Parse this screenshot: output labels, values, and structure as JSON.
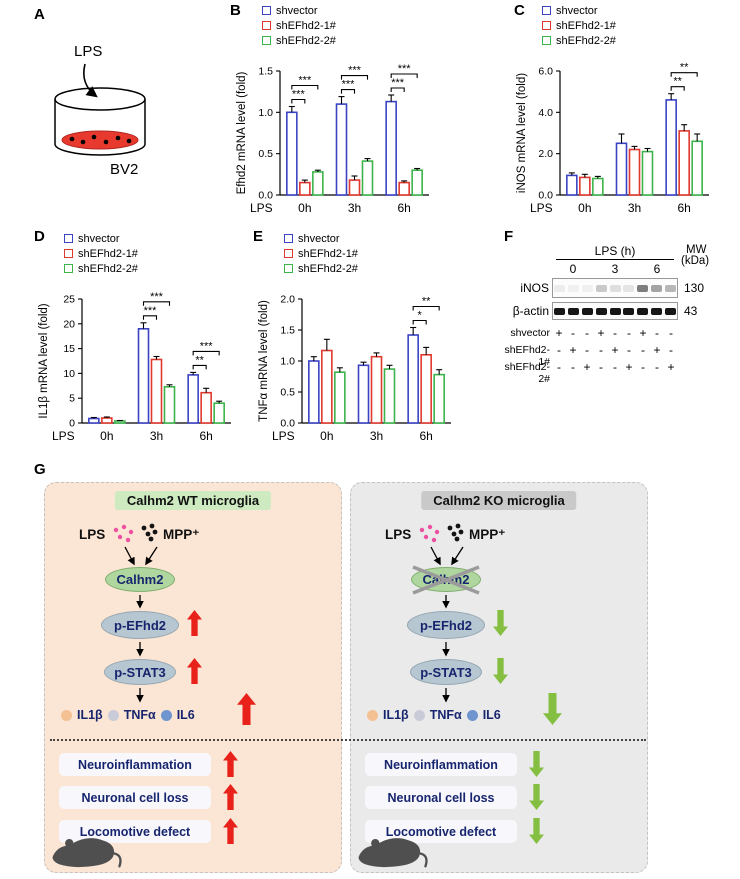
{
  "panels": {
    "a": {
      "label": "A",
      "stimulus": "LPS",
      "cell_line": "BV2"
    },
    "b": {
      "label": "B"
    },
    "c": {
      "label": "C"
    },
    "d": {
      "label": "D"
    },
    "e": {
      "label": "E"
    },
    "f": {
      "label": "F"
    },
    "g": {
      "label": "G"
    }
  },
  "chart_data": [
    {
      "type": "bar",
      "panel": "B",
      "ylabel": "Efhd2 mRNA level (fold)",
      "x_prefix": "LPS",
      "categories": [
        "0h",
        "3h",
        "6h"
      ],
      "ylim": [
        0,
        1.5
      ],
      "yticks": [
        0,
        0.5,
        1.0,
        1.5
      ],
      "ytick_labels": [
        "0.0",
        "0.5",
        "1.0",
        "1.5"
      ],
      "grid": false,
      "legend_position": "top-left",
      "series": [
        {
          "name": "shvector",
          "color": "#3a43c4",
          "values": [
            1.0,
            1.1,
            1.13
          ],
          "errors": [
            0.07,
            0.09,
            0.08
          ]
        },
        {
          "name": "shEFhd2-1#",
          "color": "#e0392e",
          "values": [
            0.15,
            0.18,
            0.15
          ],
          "errors": [
            0.03,
            0.05,
            0.02
          ]
        },
        {
          "name": "shEFhd2-2#",
          "color": "#3cb44b",
          "values": [
            0.28,
            0.41,
            0.3
          ],
          "errors": [
            0.02,
            0.03,
            0.02
          ]
        }
      ],
      "significance": [
        {
          "category": 0,
          "from": 0,
          "to": 1,
          "label": "***",
          "level": 0
        },
        {
          "category": 0,
          "from": 0,
          "to": 2,
          "label": "***",
          "level": 1
        },
        {
          "category": 1,
          "from": 0,
          "to": 1,
          "label": "***",
          "level": 0
        },
        {
          "category": 1,
          "from": 0,
          "to": 2,
          "label": "***",
          "level": 1
        },
        {
          "category": 2,
          "from": 0,
          "to": 1,
          "label": "***",
          "level": 0
        },
        {
          "category": 2,
          "from": 0,
          "to": 2,
          "label": "***",
          "level": 1
        }
      ]
    },
    {
      "type": "bar",
      "panel": "C",
      "ylabel": "iNOS mRNA level (fold)",
      "x_prefix": "LPS",
      "categories": [
        "0h",
        "3h",
        "6h"
      ],
      "ylim": [
        0,
        6
      ],
      "yticks": [
        0,
        2,
        4,
        6
      ],
      "ytick_labels": [
        "0.0",
        "2.0",
        "4.0",
        "6.0"
      ],
      "grid": false,
      "legend_position": "top-left",
      "series": [
        {
          "name": "shvector",
          "color": "#3a43c4",
          "values": [
            0.95,
            2.5,
            4.6
          ],
          "errors": [
            0.12,
            0.45,
            0.3
          ]
        },
        {
          "name": "shEFhd2-1#",
          "color": "#e0392e",
          "values": [
            0.85,
            2.2,
            3.1
          ],
          "errors": [
            0.15,
            0.15,
            0.3
          ]
        },
        {
          "name": "shEFhd2-2#",
          "color": "#3cb44b",
          "values": [
            0.8,
            2.1,
            2.6
          ],
          "errors": [
            0.1,
            0.15,
            0.35
          ]
        }
      ],
      "significance": [
        {
          "category": 2,
          "from": 0,
          "to": 1,
          "label": "**",
          "level": 0
        },
        {
          "category": 2,
          "from": 0,
          "to": 2,
          "label": "**",
          "level": 1
        }
      ]
    },
    {
      "type": "bar",
      "panel": "D",
      "ylabel": "IL1β mRNA level (fold)",
      "x_prefix": "LPS",
      "categories": [
        "0h",
        "3h",
        "6h"
      ],
      "ylim": [
        0,
        25
      ],
      "yticks": [
        0,
        5,
        10,
        15,
        20,
        25
      ],
      "ytick_labels": [
        "0",
        "5",
        "10",
        "15",
        "20",
        "25"
      ],
      "grid": false,
      "legend_position": "top-left",
      "series": [
        {
          "name": "shvector",
          "color": "#3a43c4",
          "values": [
            0.9,
            19.0,
            9.7
          ],
          "errors": [
            0.2,
            1.2,
            0.5
          ]
        },
        {
          "name": "shEFhd2-1#",
          "color": "#e0392e",
          "values": [
            1.0,
            12.8,
            6.1
          ],
          "errors": [
            0.2,
            0.6,
            0.9
          ]
        },
        {
          "name": "shEFhd2-2#",
          "color": "#3cb44b",
          "values": [
            0.4,
            7.3,
            4.0
          ],
          "errors": [
            0.1,
            0.4,
            0.4
          ]
        }
      ],
      "significance": [
        {
          "category": 1,
          "from": 0,
          "to": 1,
          "label": "***",
          "level": 0
        },
        {
          "category": 1,
          "from": 0,
          "to": 2,
          "label": "***",
          "level": 1
        },
        {
          "category": 2,
          "from": 0,
          "to": 1,
          "label": "**",
          "level": 0
        },
        {
          "category": 2,
          "from": 0,
          "to": 2,
          "label": "***",
          "level": 1
        }
      ]
    },
    {
      "type": "bar",
      "panel": "E",
      "ylabel": "TNFα mRNA level (fold)",
      "x_prefix": "LPS",
      "categories": [
        "0h",
        "3h",
        "6h"
      ],
      "ylim": [
        0,
        2
      ],
      "yticks": [
        0,
        0.5,
        1.0,
        1.5,
        2.0
      ],
      "ytick_labels": [
        "0.0",
        "0.5",
        "1.0",
        "1.5",
        "2.0"
      ],
      "grid": false,
      "legend_position": "top-left",
      "series": [
        {
          "name": "shvector",
          "color": "#3a43c4",
          "values": [
            1.0,
            0.93,
            1.42
          ],
          "errors": [
            0.07,
            0.05,
            0.12
          ]
        },
        {
          "name": "shEFhd2-1#",
          "color": "#e0392e",
          "values": [
            1.17,
            1.07,
            1.1
          ],
          "errors": [
            0.18,
            0.06,
            0.12
          ]
        },
        {
          "name": "shEFhd2-2#",
          "color": "#3cb44b",
          "values": [
            0.82,
            0.87,
            0.78
          ],
          "errors": [
            0.07,
            0.06,
            0.08
          ]
        }
      ],
      "significance": [
        {
          "category": 2,
          "from": 0,
          "to": 1,
          "label": "*",
          "level": 0
        },
        {
          "category": 2,
          "from": 0,
          "to": 2,
          "label": "**",
          "level": 1
        }
      ]
    }
  ],
  "blot": {
    "treatment_header": "LPS (h)",
    "mw_header_line1": "MW",
    "mw_header_line2": "(kDa)",
    "timepoints": [
      "0",
      "3",
      "6"
    ],
    "bands": [
      {
        "protein": "iNOS",
        "mw": "130",
        "intensities": [
          0.07,
          0.05,
          0.05,
          0.22,
          0.13,
          0.1,
          0.55,
          0.38,
          0.3
        ]
      },
      {
        "protein": "β-actin",
        "mw": "43",
        "intensities": [
          1,
          1,
          1,
          1,
          1,
          1,
          1,
          1,
          1
        ]
      }
    ],
    "condition_rows": [
      {
        "name": "shvector",
        "signs": [
          "+",
          "-",
          "-",
          "+",
          "-",
          "-",
          "+",
          "-",
          "-"
        ]
      },
      {
        "name": "shEFhd2-1#",
        "signs": [
          "-",
          "+",
          "-",
          "-",
          "+",
          "-",
          "-",
          "+",
          "-"
        ]
      },
      {
        "name": "shEFhd2-2#",
        "signs": [
          "-",
          "-",
          "+",
          "-",
          "-",
          "+",
          "-",
          "-",
          "+"
        ]
      }
    ]
  },
  "schematic": {
    "lps_dot_color": "#ee4fa0",
    "mpp_dot_color": "#141414",
    "columns": [
      {
        "title": "Calhm2 WT microglia",
        "title_bg": "#cdeac0",
        "panel_bg": "#fbe5d4",
        "stimuli": {
          "lps": "LPS",
          "mpp": "MPP⁺"
        },
        "nodes": {
          "receptor": "Calhm2",
          "kinase": "p-EFhd2",
          "tf": "p-STAT3"
        },
        "receptor_crossed": false,
        "cytokines": [
          {
            "name": "IL1β",
            "color": "#f3c193"
          },
          {
            "name": "TNFα",
            "color": "#c9cbd8"
          },
          {
            "name": "IL6",
            "color": "#6f95cf"
          }
        ],
        "outcomes": [
          "Neuroinflammation",
          "Neuronal cell loss",
          "Locomotive defect"
        ],
        "trend": "up",
        "trend_color": "#e8211b"
      },
      {
        "title": "Calhm2 KO microglia",
        "title_bg": "#c9c9c9",
        "panel_bg": "#eaeaea",
        "stimuli": {
          "lps": "LPS",
          "mpp": "MPP⁺"
        },
        "nodes": {
          "receptor": "Calhm2",
          "kinase": "p-EFhd2",
          "tf": "p-STAT3"
        },
        "receptor_crossed": true,
        "cytokines": [
          {
            "name": "IL1β",
            "color": "#f3c193"
          },
          {
            "name": "TNFα",
            "color": "#c9cbd8"
          },
          {
            "name": "IL6",
            "color": "#6f95cf"
          }
        ],
        "outcomes": [
          "Neuroinflammation",
          "Neuronal cell loss",
          "Locomotive defect"
        ],
        "trend": "down",
        "trend_color": "#84bf41"
      }
    ]
  }
}
